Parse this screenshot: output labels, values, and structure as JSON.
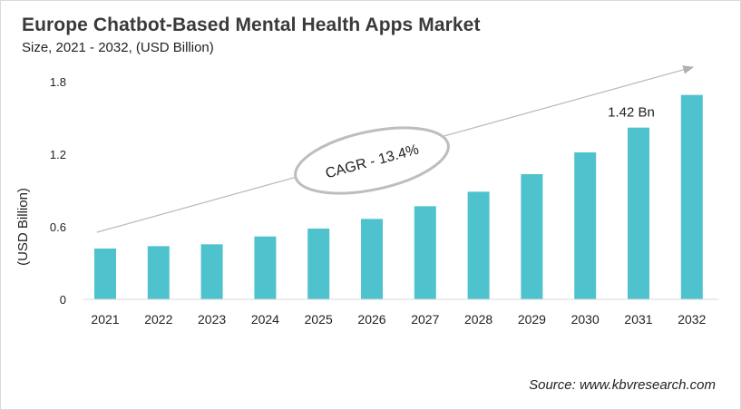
{
  "chart_data": {
    "type": "bar",
    "title": "Europe Chatbot-Based Mental Health Apps Market",
    "subtitle": "Size, 2021 - 2032, (USD Billion)",
    "xlabel": "",
    "ylabel": "(USD Billion)",
    "categories": [
      "2021",
      "2022",
      "2023",
      "2024",
      "2025",
      "2026",
      "2027",
      "2028",
      "2029",
      "2030",
      "2031",
      "2032"
    ],
    "values": [
      0.42,
      0.44,
      0.455,
      0.52,
      0.585,
      0.665,
      0.77,
      0.89,
      1.035,
      1.215,
      1.42,
      1.69
    ],
    "ylim": [
      0,
      1.8
    ],
    "yticks": [
      "0",
      "0.6",
      "1.2",
      "1.8"
    ],
    "grid": false,
    "bar_color": "#4fc3cd",
    "annotations": {
      "data_label": "1.42 Bn",
      "data_label_category": "2031",
      "cagr": "CAGR - 13.4%"
    },
    "source": "Source: www.kbvresearch.com"
  }
}
